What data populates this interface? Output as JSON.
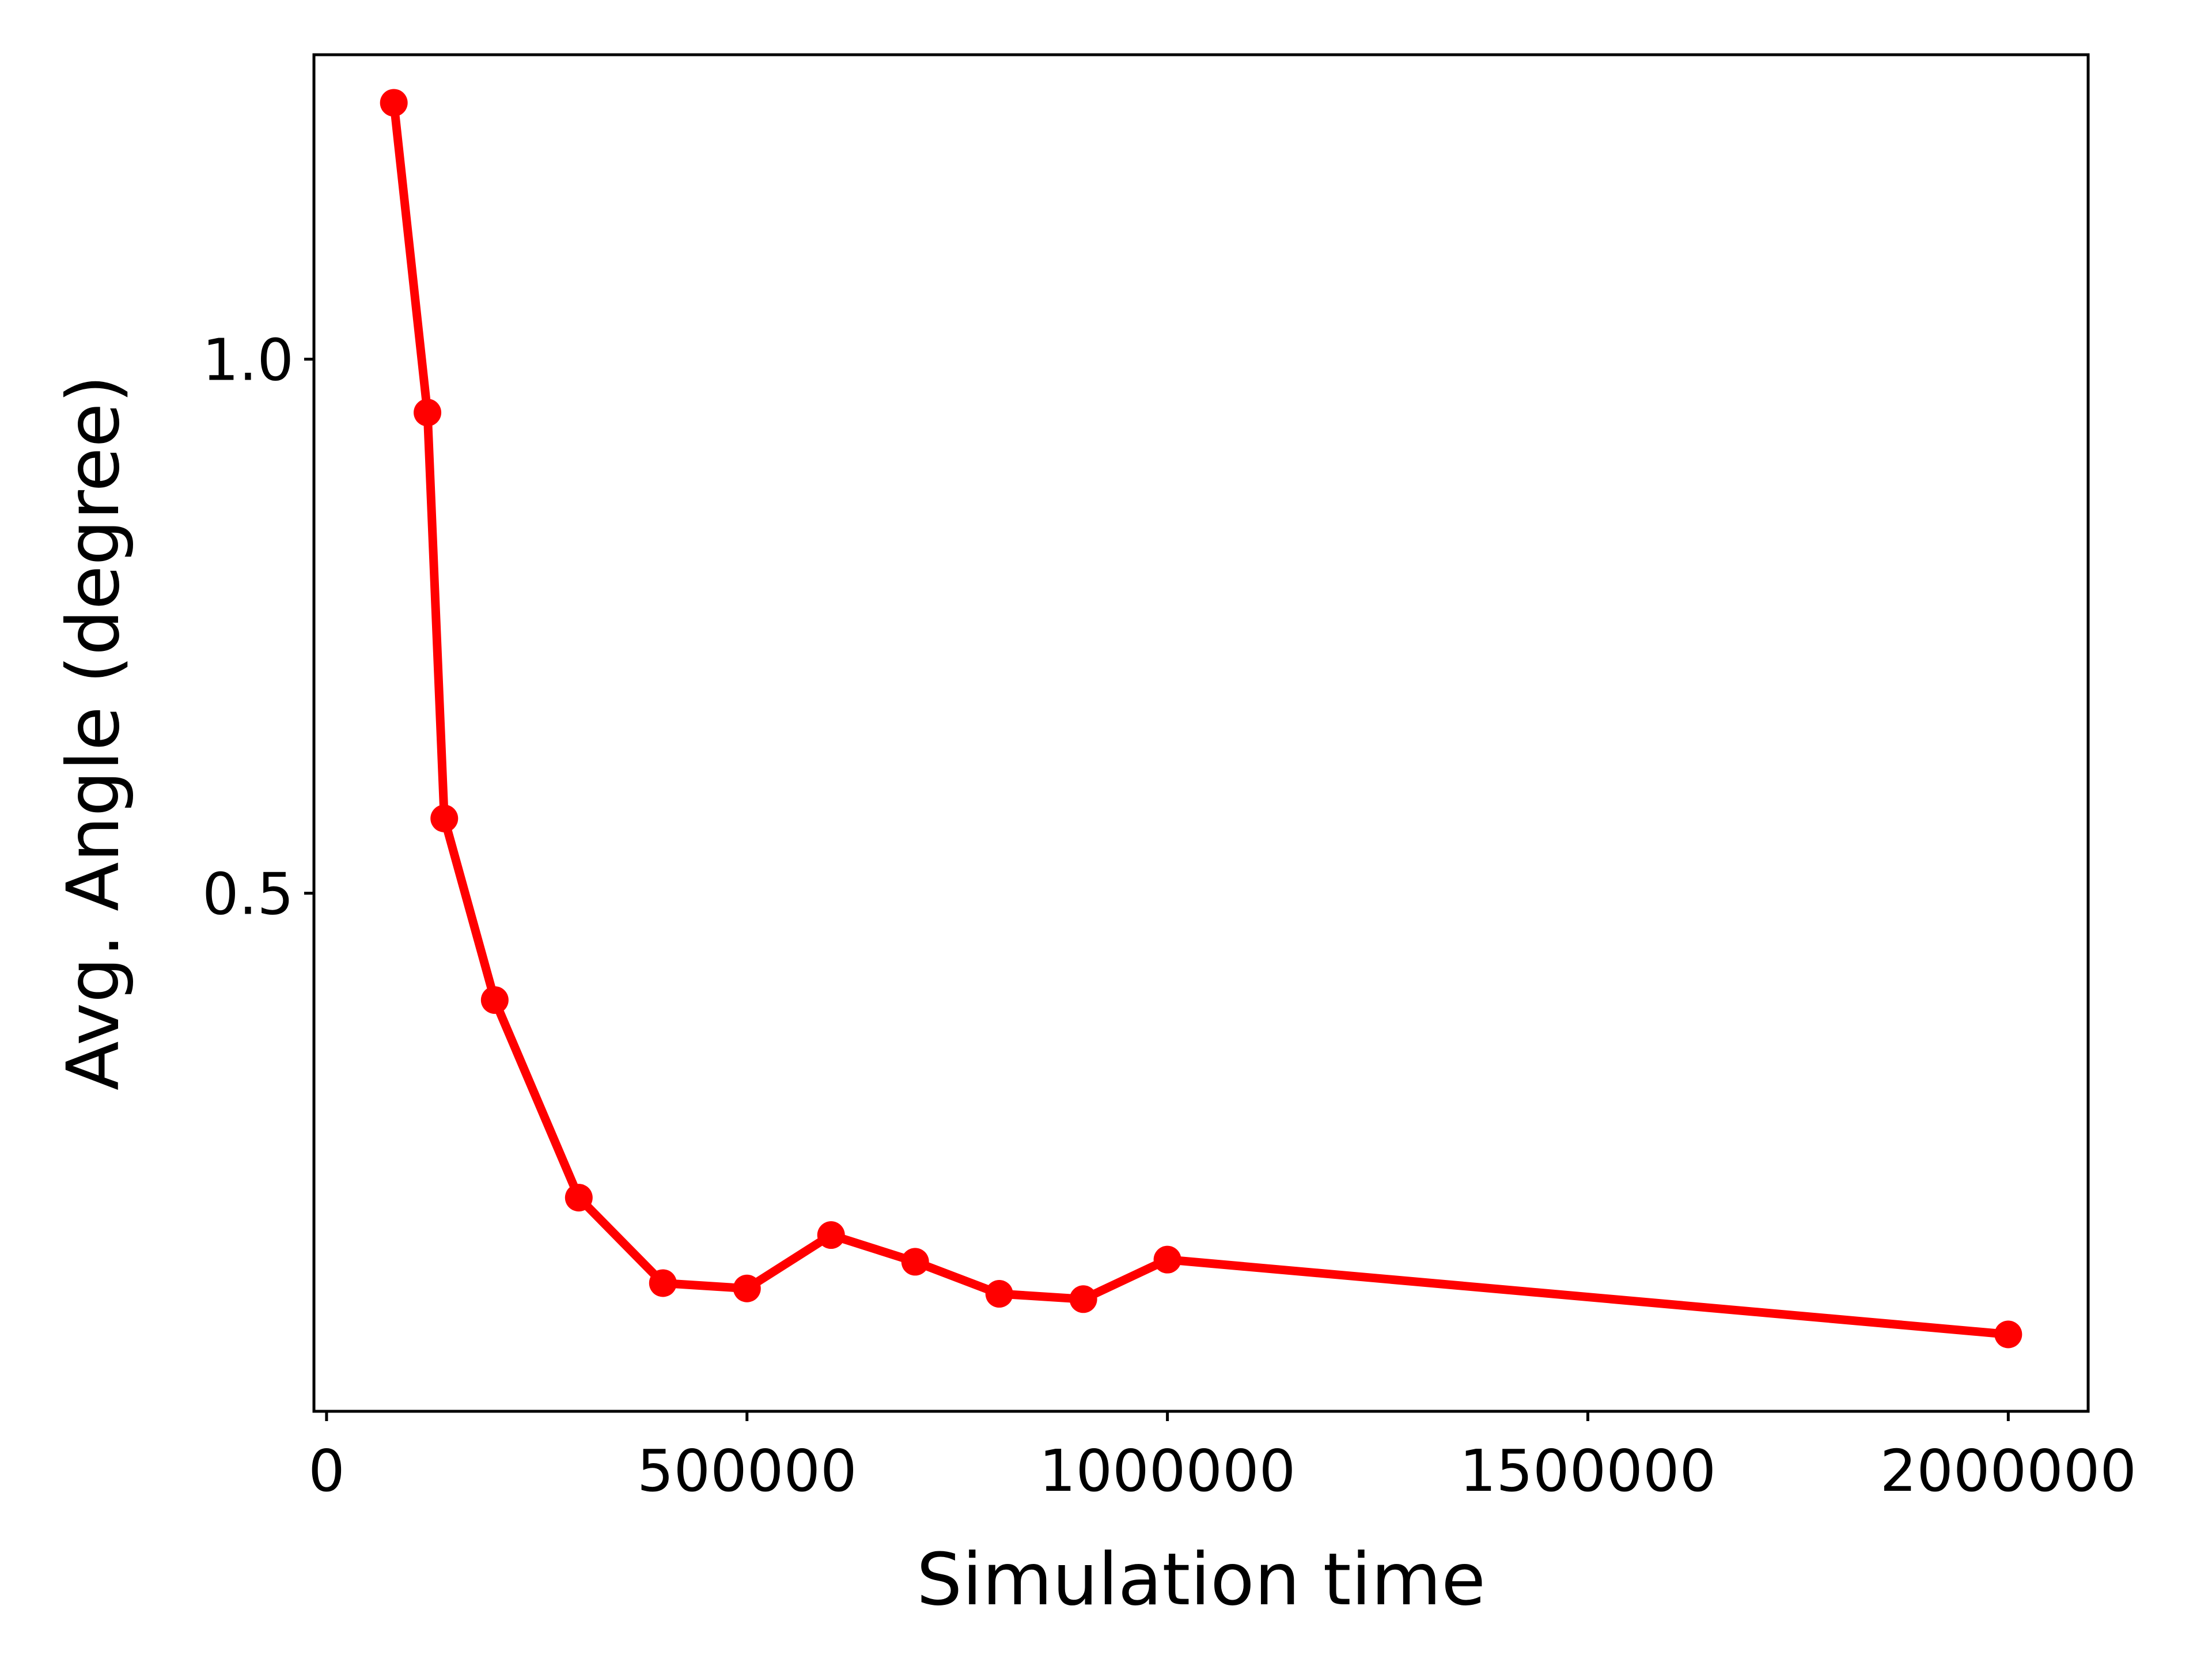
{
  "chart_data": {
    "type": "line",
    "title": "",
    "xlabel": "Simulation time",
    "ylabel": "Avg. Angle (degree)",
    "xlim": [
      -15000,
      2095000
    ],
    "ylim": [
      0.015,
      1.285
    ],
    "x_ticks": [
      {
        "value": 0,
        "label": "0"
      },
      {
        "value": 500000,
        "label": "500000"
      },
      {
        "value": 1000000,
        "label": "1000000"
      },
      {
        "value": 1500000,
        "label": "1500000"
      },
      {
        "value": 2000000,
        "label": "2000000"
      }
    ],
    "y_ticks": [
      {
        "value": 0.5,
        "label": "0.5"
      },
      {
        "value": 1.0,
        "label": "1.0"
      }
    ],
    "grid": false,
    "color": "#ff0000",
    "series": [
      {
        "x": [
          80000,
          120000,
          140000,
          200000,
          300000,
          400000,
          500000,
          600000,
          700000,
          800000,
          900000,
          1000000,
          2000000
        ],
        "y": [
          1.24,
          0.95,
          0.57,
          0.4,
          0.215,
          0.135,
          0.13,
          0.18,
          0.155,
          0.125,
          0.12,
          0.157,
          0.087
        ]
      }
    ]
  }
}
